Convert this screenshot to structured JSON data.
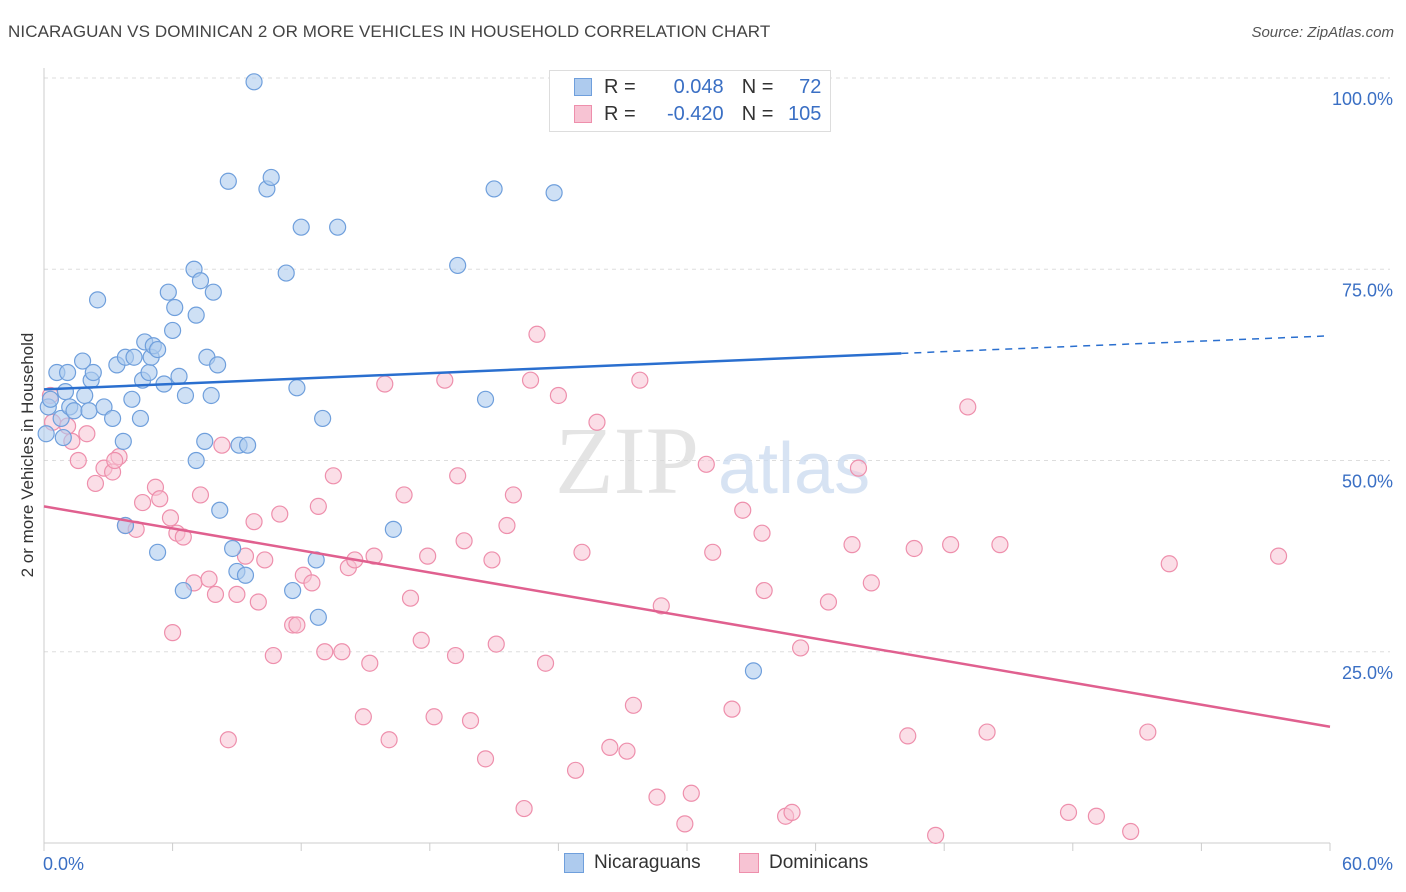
{
  "title": "NICARAGUAN VS DOMINICAN 2 OR MORE VEHICLES IN HOUSEHOLD CORRELATION CHART",
  "source": "Source: ZipAtlas.com",
  "colors": {
    "blue_fill": "#aecbee",
    "blue_stroke": "#6f9fdc",
    "blue_line": "#2a6fcf",
    "pink_fill": "#f7c3d3",
    "pink_stroke": "#ee8fac",
    "pink_line": "#e0608f",
    "axis_text": "#3a6fc4",
    "grid": "#dddddd"
  },
  "legend": {
    "r_label": "R =",
    "n_label": "N =",
    "rows": [
      {
        "series": "Nicaraguans",
        "r": "0.048",
        "n": "72"
      },
      {
        "series": "Dominicans",
        "r": "-0.420",
        "n": "105"
      }
    ]
  },
  "watermark": {
    "zip": "ZIP",
    "atlas": "atlas"
  },
  "chart_data": {
    "type": "scatter",
    "title": "NICARAGUAN VS DOMINICAN 2 OR MORE VEHICLES IN HOUSEHOLD CORRELATION CHART",
    "xlabel": "",
    "ylabel": "2 or more Vehicles in Household",
    "xlim": [
      0,
      60
    ],
    "ylim": [
      0,
      100
    ],
    "x_tick_labels": [
      "0.0%",
      "60.0%"
    ],
    "y_ticks": [
      25,
      50,
      75,
      100
    ],
    "y_tick_labels": [
      "25.0%",
      "50.0%",
      "75.0%",
      "100.0%"
    ],
    "grid": true,
    "legend_position": "top-center",
    "series": [
      {
        "name": "Nicaraguans",
        "r": 0.048,
        "n": 72,
        "trend": {
          "x0": 0,
          "y0": 59.3,
          "x1": 40,
          "y1": 64.0,
          "dash_to_x": 60,
          "dash_to_y": 66.3
        },
        "points": [
          [
            0.1,
            53.5
          ],
          [
            0.2,
            57.0
          ],
          [
            0.3,
            58.0
          ],
          [
            0.6,
            61.5
          ],
          [
            0.8,
            55.5
          ],
          [
            0.9,
            53.0
          ],
          [
            1.0,
            59.0
          ],
          [
            1.1,
            61.5
          ],
          [
            1.2,
            57.0
          ],
          [
            1.4,
            56.5
          ],
          [
            1.8,
            63.0
          ],
          [
            1.9,
            58.5
          ],
          [
            2.1,
            56.5
          ],
          [
            2.2,
            60.5
          ],
          [
            2.3,
            61.5
          ],
          [
            2.5,
            71.0
          ],
          [
            2.8,
            57.0
          ],
          [
            3.2,
            55.5
          ],
          [
            3.4,
            62.5
          ],
          [
            3.7,
            52.5
          ],
          [
            3.8,
            63.5
          ],
          [
            4.1,
            58.0
          ],
          [
            4.2,
            63.5
          ],
          [
            4.5,
            55.5
          ],
          [
            4.6,
            60.5
          ],
          [
            4.7,
            65.5
          ],
          [
            4.9,
            61.5
          ],
          [
            5.0,
            63.5
          ],
          [
            5.1,
            65.0
          ],
          [
            5.3,
            64.5
          ],
          [
            5.6,
            60.0
          ],
          [
            5.8,
            72.0
          ],
          [
            6.0,
            67.0
          ],
          [
            6.1,
            70.0
          ],
          [
            6.3,
            61.0
          ],
          [
            6.6,
            58.5
          ],
          [
            7.0,
            75.0
          ],
          [
            7.1,
            69.0
          ],
          [
            7.3,
            73.5
          ],
          [
            7.6,
            63.5
          ],
          [
            7.9,
            72.0
          ],
          [
            8.1,
            62.5
          ],
          [
            7.8,
            58.5
          ],
          [
            8.6,
            86.5
          ],
          [
            8.8,
            38.5
          ],
          [
            9.0,
            35.5
          ],
          [
            9.1,
            52.0
          ],
          [
            9.4,
            35.0
          ],
          [
            9.5,
            52.0
          ],
          [
            9.8,
            99.5
          ],
          [
            10.4,
            85.5
          ],
          [
            10.6,
            87.0
          ],
          [
            11.3,
            74.5
          ],
          [
            11.6,
            33.0
          ],
          [
            11.8,
            59.5
          ],
          [
            12.0,
            80.5
          ],
          [
            12.7,
            37.0
          ],
          [
            12.8,
            29.5
          ],
          [
            13.0,
            55.5
          ],
          [
            13.7,
            80.5
          ],
          [
            16.3,
            41.0
          ],
          [
            19.3,
            75.5
          ],
          [
            20.6,
            58.0
          ],
          [
            21.0,
            85.5
          ],
          [
            23.8,
            85.0
          ],
          [
            33.1,
            22.5
          ],
          [
            3.8,
            41.5
          ],
          [
            5.3,
            38.0
          ],
          [
            6.5,
            33.0
          ],
          [
            7.5,
            52.5
          ],
          [
            8.2,
            43.5
          ],
          [
            7.1,
            50.0
          ]
        ]
      },
      {
        "name": "Dominicans",
        "r": -0.42,
        "n": 105,
        "trend": {
          "x0": 0,
          "y0": 44.0,
          "x1": 60,
          "y1": 15.2
        },
        "points": [
          [
            0.3,
            58.5
          ],
          [
            0.4,
            55.0
          ],
          [
            1.1,
            54.5
          ],
          [
            1.3,
            52.5
          ],
          [
            1.6,
            50.0
          ],
          [
            2.0,
            53.5
          ],
          [
            2.4,
            47.0
          ],
          [
            2.8,
            49.0
          ],
          [
            3.2,
            48.5
          ],
          [
            3.5,
            50.5
          ],
          [
            3.8,
            41.5
          ],
          [
            4.3,
            41.0
          ],
          [
            4.6,
            44.5
          ],
          [
            5.2,
            46.5
          ],
          [
            5.4,
            45.0
          ],
          [
            5.9,
            42.5
          ],
          [
            6.2,
            40.5
          ],
          [
            6.5,
            40.0
          ],
          [
            6.0,
            27.5
          ],
          [
            7.0,
            34.0
          ],
          [
            7.3,
            45.5
          ],
          [
            7.7,
            34.5
          ],
          [
            8.0,
            32.5
          ],
          [
            8.3,
            52.0
          ],
          [
            8.6,
            13.5
          ],
          [
            9.0,
            32.5
          ],
          [
            9.4,
            37.5
          ],
          [
            9.8,
            42.0
          ],
          [
            10.0,
            31.5
          ],
          [
            10.3,
            37.0
          ],
          [
            10.7,
            24.5
          ],
          [
            11.0,
            43.0
          ],
          [
            11.6,
            28.5
          ],
          [
            11.8,
            28.5
          ],
          [
            12.1,
            35.0
          ],
          [
            12.5,
            34.0
          ],
          [
            12.8,
            44.0
          ],
          [
            13.1,
            25.0
          ],
          [
            13.5,
            48.0
          ],
          [
            13.9,
            25.0
          ],
          [
            14.2,
            36.0
          ],
          [
            14.5,
            37.0
          ],
          [
            14.9,
            16.5
          ],
          [
            15.2,
            23.5
          ],
          [
            15.4,
            37.5
          ],
          [
            15.9,
            60.0
          ],
          [
            16.1,
            13.5
          ],
          [
            16.8,
            45.5
          ],
          [
            17.1,
            32.0
          ],
          [
            17.6,
            26.5
          ],
          [
            17.9,
            37.5
          ],
          [
            18.2,
            16.5
          ],
          [
            18.7,
            60.5
          ],
          [
            19.2,
            24.5
          ],
          [
            19.3,
            48.0
          ],
          [
            19.6,
            39.5
          ],
          [
            19.9,
            16.0
          ],
          [
            20.6,
            11.0
          ],
          [
            20.9,
            37.0
          ],
          [
            21.1,
            26.0
          ],
          [
            21.6,
            41.5
          ],
          [
            21.9,
            45.5
          ],
          [
            22.4,
            4.5
          ],
          [
            22.7,
            60.5
          ],
          [
            23.0,
            66.5
          ],
          [
            23.4,
            23.5
          ],
          [
            24.0,
            58.5
          ],
          [
            24.8,
            9.5
          ],
          [
            25.1,
            38.0
          ],
          [
            25.8,
            55.0
          ],
          [
            26.4,
            12.5
          ],
          [
            27.2,
            12.0
          ],
          [
            27.5,
            18.0
          ],
          [
            27.8,
            60.5
          ],
          [
            28.6,
            6.0
          ],
          [
            28.8,
            31.0
          ],
          [
            29.9,
            2.5
          ],
          [
            30.2,
            6.5
          ],
          [
            30.9,
            49.5
          ],
          [
            31.2,
            38.0
          ],
          [
            32.1,
            17.5
          ],
          [
            32.6,
            43.5
          ],
          [
            33.5,
            40.5
          ],
          [
            33.6,
            33.0
          ],
          [
            34.6,
            3.5
          ],
          [
            34.9,
            4.0
          ],
          [
            35.3,
            25.5
          ],
          [
            36.6,
            31.5
          ],
          [
            37.7,
            39.0
          ],
          [
            38.0,
            49.0
          ],
          [
            38.6,
            34.0
          ],
          [
            40.3,
            14.0
          ],
          [
            40.6,
            38.5
          ],
          [
            41.6,
            1.0
          ],
          [
            42.3,
            39.0
          ],
          [
            43.1,
            57.0
          ],
          [
            44.0,
            14.5
          ],
          [
            44.6,
            39.0
          ],
          [
            47.8,
            4.0
          ],
          [
            49.1,
            3.5
          ],
          [
            50.7,
            1.5
          ],
          [
            51.5,
            14.5
          ],
          [
            52.5,
            36.5
          ],
          [
            57.6,
            37.5
          ],
          [
            3.3,
            50.0
          ]
        ]
      }
    ]
  }
}
